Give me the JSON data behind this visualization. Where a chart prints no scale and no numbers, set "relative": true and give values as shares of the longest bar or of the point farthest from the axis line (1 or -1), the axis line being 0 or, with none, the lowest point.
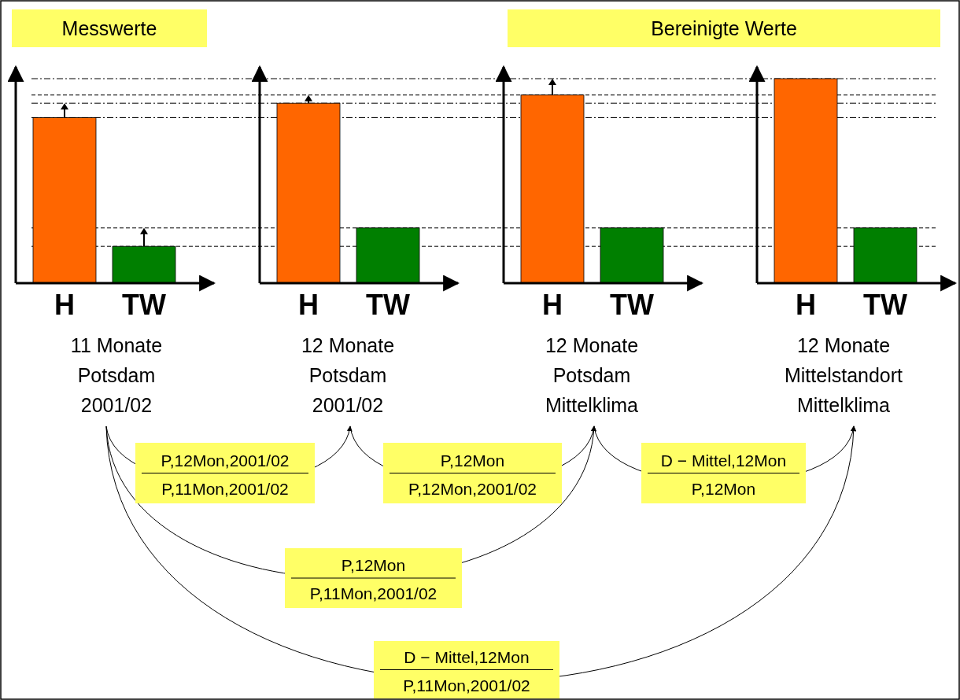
{
  "chart_data": {
    "type": "bar",
    "relative": true,
    "categories": [
      "H",
      "TW",
      "H",
      "TW",
      "H",
      "TW",
      "H",
      "TW"
    ],
    "values": [
      0.81,
      0.18,
      0.88,
      0.27,
      0.92,
      0.27,
      1,
      0.27
    ],
    "colors": [
      "#ff6600",
      "#007f00",
      "#ff6600",
      "#007f00",
      "#ff6600",
      "#007f00",
      "#ff6600",
      "#007f00"
    ],
    "ref_lines": [
      {
        "axis": "y",
        "value": 1,
        "line_style": "dashdot"
      },
      {
        "axis": "y",
        "value": 0.92,
        "line_style": "dashed"
      },
      {
        "axis": "y",
        "value": 0.88,
        "line_style": "dashdot"
      },
      {
        "axis": "y",
        "value": 0.81,
        "line_style": "dashdot"
      },
      {
        "axis": "y",
        "value": 0.27,
        "line_style": "dashed"
      },
      {
        "axis": "y",
        "value": 0.18,
        "line_style": "dashed"
      }
    ],
    "annotations": [
      "Messwerte",
      "Bereinigte Werte",
      "11 Monate\nPotsdam\n2001/02",
      "12 Monate\nPotsdam\n2001/02",
      "12 Monate\nPotsdam\nMittelklima",
      "12 Monate\nMittelstandort\nMittelklima",
      "P,12Mon,2001/02\nP,11Mon,2001/02",
      "P,12Mon\nP,12Mon,2001/02",
      "D − Mittel,12Mon\nP,12Mon",
      "P,12Mon\nP,11Mon,2001/02",
      "D − Mittel,12Mon\nP,11Mon,2001/02"
    ]
  }
}
